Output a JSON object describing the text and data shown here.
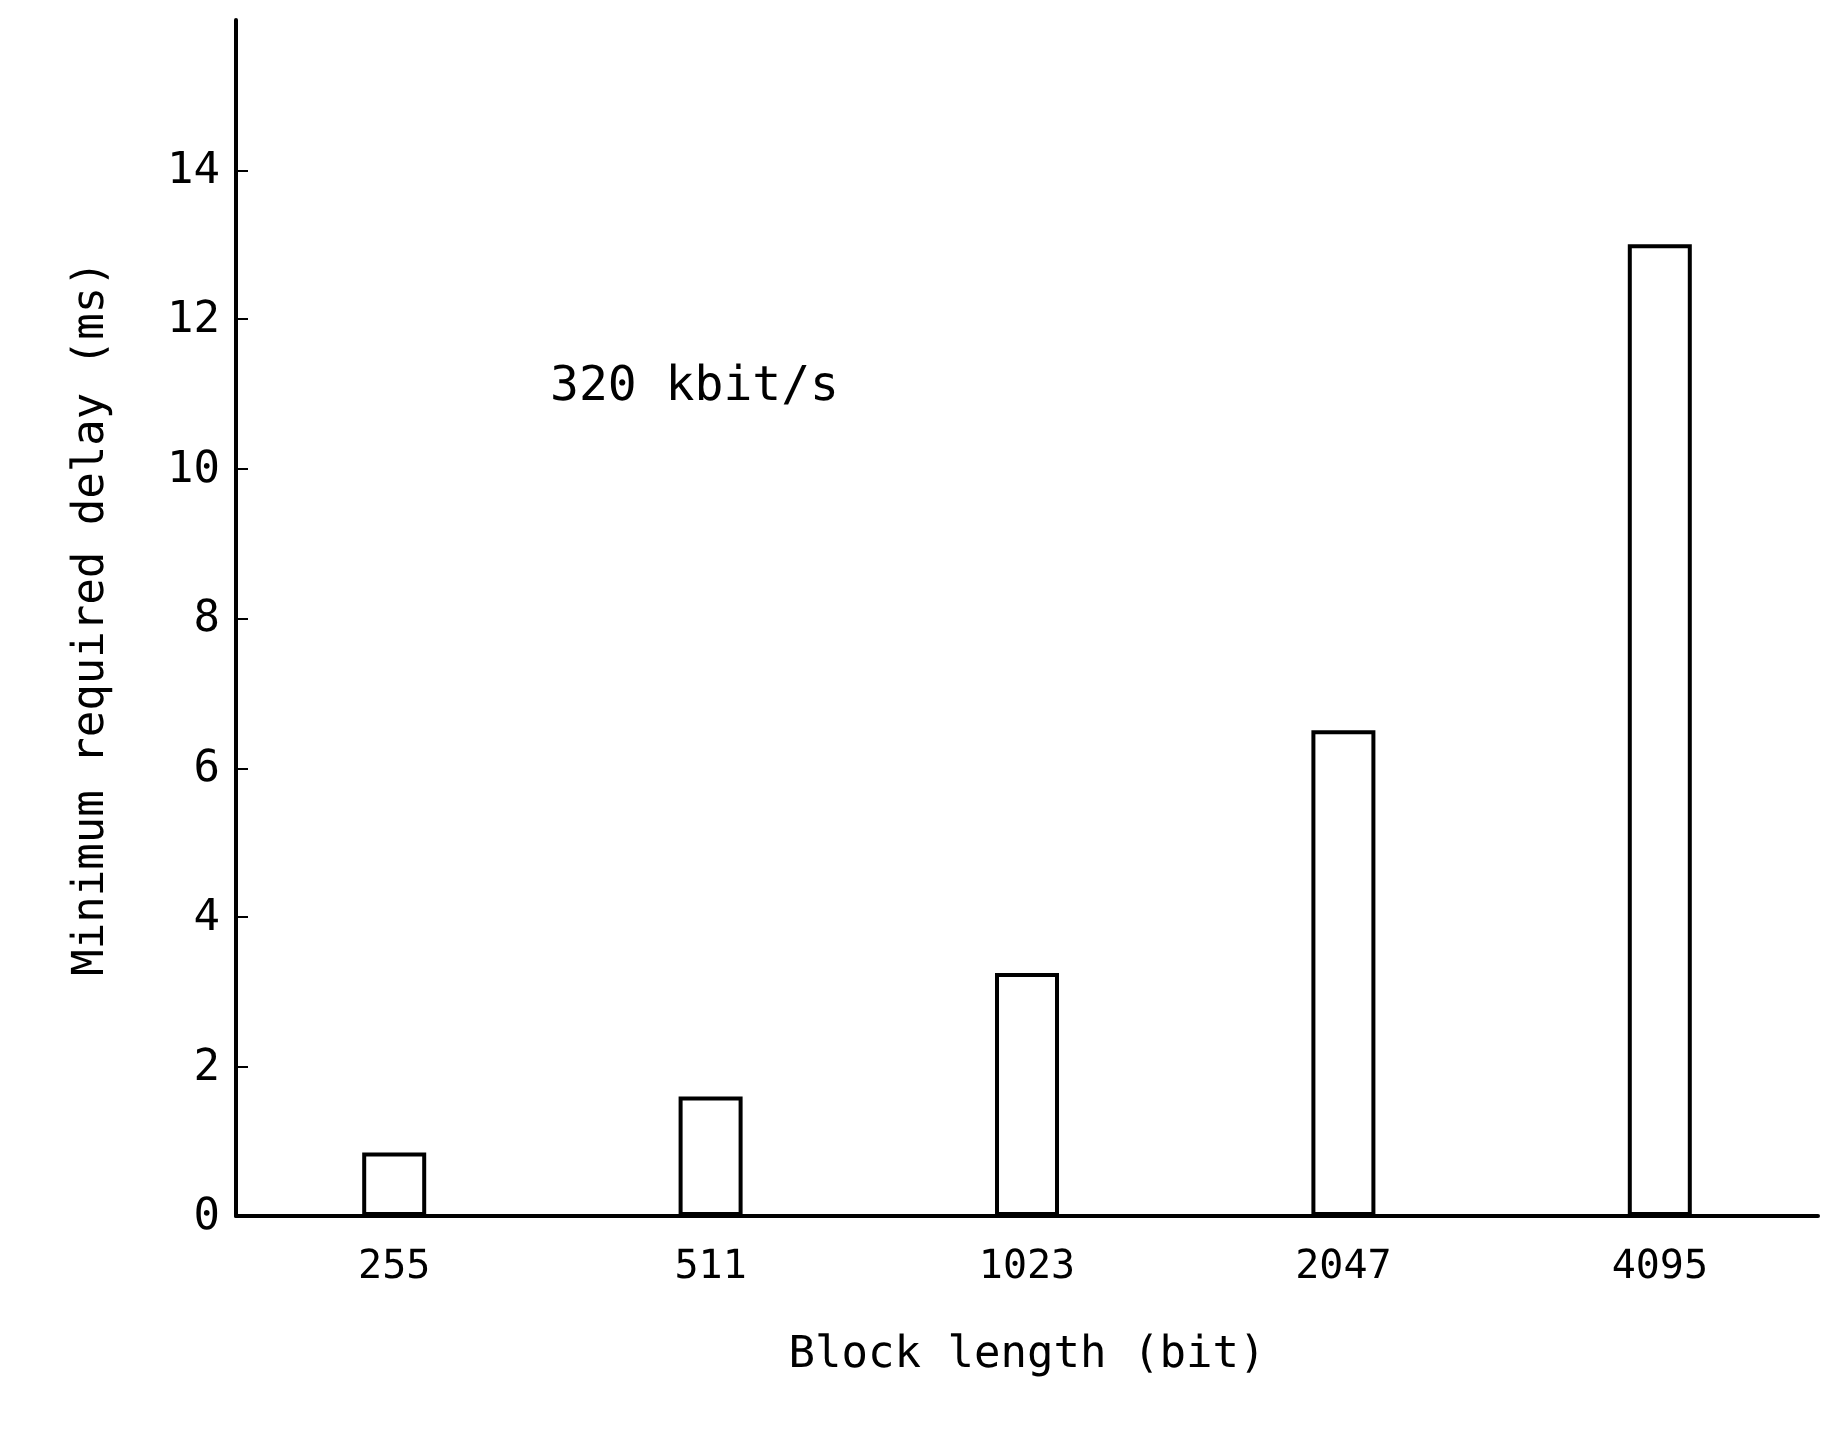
{
  "chart_data": {
    "type": "bar",
    "xlabel": "Block length (bit)",
    "ylabel": "Minimum required delay (ms)",
    "categories": [
      "255",
      "511",
      "1023",
      "2047",
      "4095"
    ],
    "values": [
      0.85,
      1.6,
      3.25,
      6.5,
      13.0
    ],
    "color": "#ffffff",
    "ylim": [
      0,
      16
    ],
    "yticks": [
      0,
      2,
      4,
      6,
      8,
      10,
      12,
      14
    ],
    "annotations": [
      "320 kbit/s"
    ]
  }
}
